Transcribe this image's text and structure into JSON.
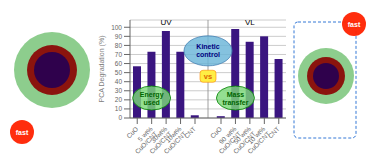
{
  "chart_data": {
    "type": "bar",
    "categories": [
      "CuO",
      "5 wt%\nCuO/CNT",
      "30wt%\nCuO/CNT",
      "10wt%\nCuO/CNT",
      "CNT",
      "CuO",
      "90 wt%\nCuO/CNT",
      "50 wt%\nCuO/CNT",
      "10 wt%\nCuO/CNT",
      "CNT"
    ],
    "values": [
      57,
      73,
      96,
      73,
      3,
      2,
      98,
      84,
      90,
      65
    ],
    "color": "#3a1580",
    "ylabel": "PCA Degradation (%)",
    "ylim": [
      0,
      108
    ],
    "yticks": [
      0,
      10,
      20,
      30,
      40,
      50,
      60,
      70,
      80,
      90,
      100
    ],
    "grid": true,
    "annotations": [
      "UV",
      "VL",
      "Kinetic\ncontrol",
      "Energy\nused",
      "Mass\ntransfer",
      "vs",
      "fast",
      "fast"
    ]
  }
}
